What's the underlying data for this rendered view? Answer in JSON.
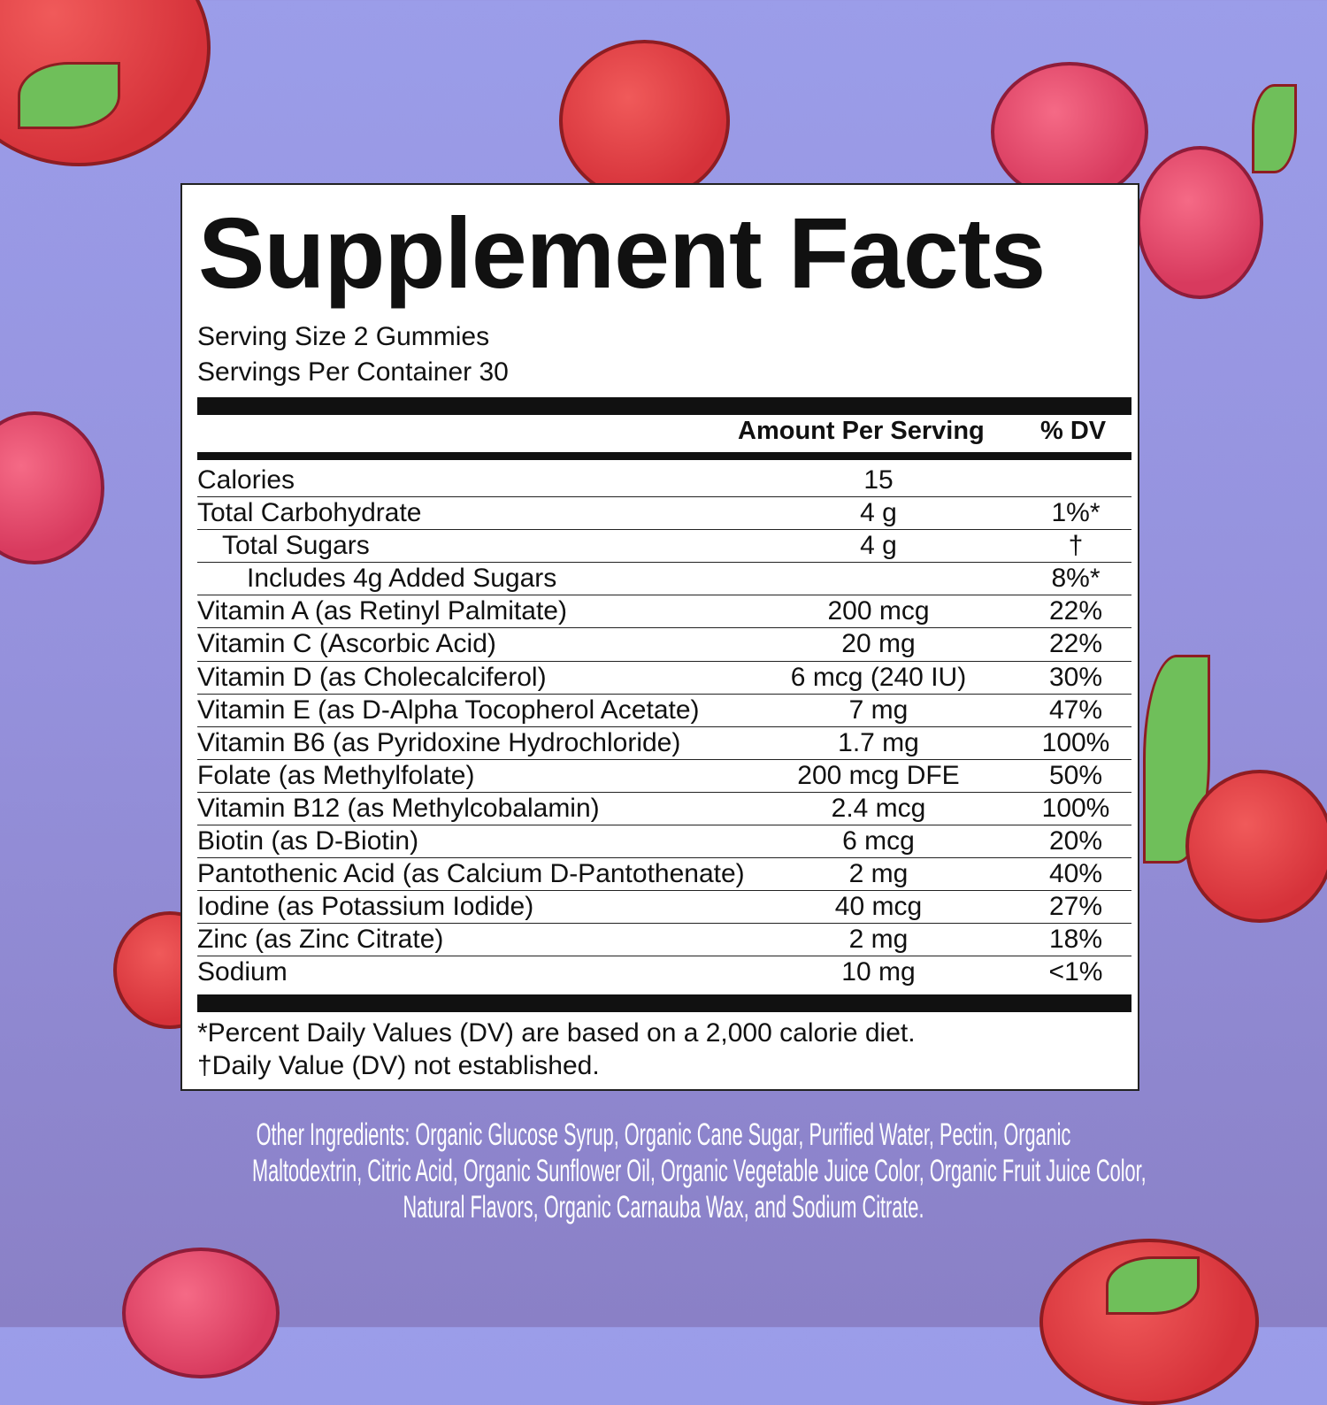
{
  "title": "Supplement Facts",
  "serving_size": "Serving Size 2 Gummies",
  "servings_per_container": "Servings Per Container 30",
  "header": {
    "amount": "Amount Per Serving",
    "dv": "% DV"
  },
  "rows": [
    {
      "name": "Calories",
      "amount": "15",
      "dv": "",
      "indent": 0
    },
    {
      "name": "Total Carbohydrate",
      "amount": "4 g",
      "dv": "1%*",
      "indent": 0
    },
    {
      "name": "Total Sugars",
      "amount": "4 g",
      "dv": "†",
      "indent": 1
    },
    {
      "name": "Includes 4g Added Sugars",
      "amount": "",
      "dv": "8%*",
      "indent": 2
    },
    {
      "name": "Vitamin A (as Retinyl Palmitate)",
      "amount": "200 mcg",
      "dv": "22%",
      "indent": 0
    },
    {
      "name": "Vitamin C (Ascorbic Acid)",
      "amount": "20 mg",
      "dv": "22%",
      "indent": 0
    },
    {
      "name": "Vitamin D (as Cholecalciferol)",
      "amount": "6 mcg (240 IU)",
      "dv": "30%",
      "indent": 0
    },
    {
      "name": "Vitamin E (as D-Alpha Tocopherol Acetate)",
      "amount": "7 mg",
      "dv": "47%",
      "indent": 0
    },
    {
      "name": "Vitamin B6 (as Pyridoxine Hydrochloride)",
      "amount": "1.7 mg",
      "dv": "100%",
      "indent": 0
    },
    {
      "name": "Folate (as Methylfolate)",
      "amount": "200 mcg DFE",
      "dv": "50%",
      "indent": 0
    },
    {
      "name": "Vitamin B12 (as Methylcobalamin)",
      "amount": "2.4 mcg",
      "dv": "100%",
      "indent": 0
    },
    {
      "name": "Biotin (as D-Biotin)",
      "amount": "6 mcg",
      "dv": "20%",
      "indent": 0
    },
    {
      "name": "Pantothenic Acid (as Calcium D-Pantothenate)",
      "amount": "2 mg",
      "dv": "40%",
      "indent": 0
    },
    {
      "name": "Iodine (as Potassium Iodide)",
      "amount": "40 mcg",
      "dv": "27%",
      "indent": 0
    },
    {
      "name": "Zinc (as Zinc Citrate)",
      "amount": "2 mg",
      "dv": "18%",
      "indent": 0
    },
    {
      "name": "Sodium",
      "amount": "10 mg",
      "dv": "<1%",
      "indent": 0
    }
  ],
  "footnotes": [
    "*Percent Daily Values (DV) are based on a 2,000 calorie diet.",
    "†Daily Value (DV) not established."
  ],
  "other_ingredients": [
    "Other Ingredients: Organic Glucose Syrup, Organic Cane Sugar, Purified Water, Pectin, Organic",
    "Maltodextrin, Citric Acid, Organic Sunflower Oil, Organic Vegetable Juice Color, Organic Fruit Juice Color,",
    "Natural Flavors, Organic Carnauba Wax, and Sodium Citrate."
  ],
  "colors": {
    "background": "#9b9de9",
    "panel": "#ffffff",
    "text": "#111111",
    "ingredients_text": "#ffffff"
  }
}
